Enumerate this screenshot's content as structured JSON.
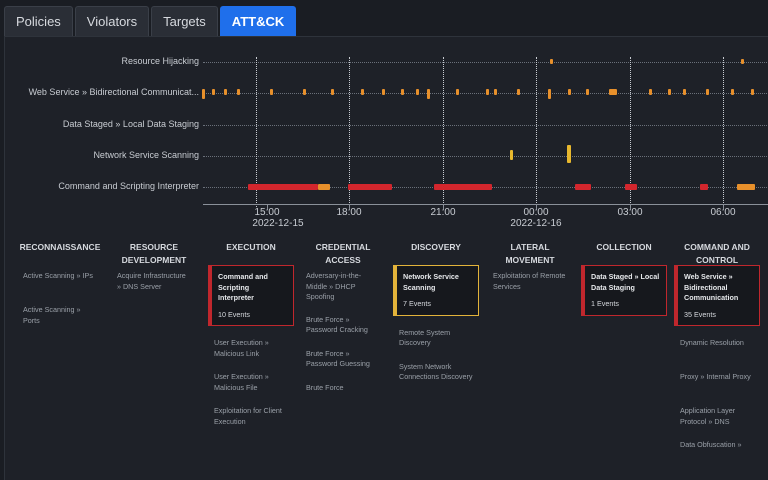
{
  "tabs": [
    {
      "label": "Policies"
    },
    {
      "label": "Violators"
    },
    {
      "label": "Targets"
    },
    {
      "label": "ATT&CK"
    }
  ],
  "timeline": {
    "rows": [
      "Resource Hijacking",
      "Web Service » Bidirectional Communicat...",
      "Data Staged » Local Data Staging",
      "Network Service Scanning",
      "Command and Scripting Interpreter"
    ],
    "ticks": [
      "15:00",
      "18:00",
      "21:00",
      "00:00",
      "03:00",
      "06:00"
    ],
    "dates": [
      "2022-12-15",
      "2022-12-16"
    ],
    "colors": {
      "orange": "#e8902b",
      "red": "#d3262d",
      "yellow": "#e8b82e"
    }
  },
  "mitre": {
    "columns": [
      {
        "head": "RECONNAISSANCE",
        "cells": [
          {
            "text": "Active Scanning » IPs"
          },
          {
            "text": "Active Scanning » Ports"
          }
        ]
      },
      {
        "head": "RESOURCE DEVELOPMENT",
        "cells": [
          {
            "text": "Acquire Infrastructure » DNS Server"
          }
        ]
      },
      {
        "head": "EXECUTION",
        "cells": [
          {
            "text": "Command and Scripting Interpreter",
            "count": "10 Events",
            "card": "red"
          },
          {
            "text": "User Execution » Malicious Link"
          },
          {
            "text": "User Execution » Malicious File"
          },
          {
            "text": "Exploitation for Client Execution"
          }
        ]
      },
      {
        "head": "CREDENTIAL ACCESS",
        "cells": [
          {
            "text": "Adversary-in-the-Middle » DHCP Spoofing"
          },
          {
            "text": "Brute Force » Password Cracking"
          },
          {
            "text": "Brute Force » Password Guessing"
          },
          {
            "text": "Brute Force"
          }
        ]
      },
      {
        "head": "DISCOVERY",
        "cells": [
          {
            "text": "Network Service Scanning",
            "count": "7 Events",
            "card": "yellow"
          },
          {
            "text": "Remote System Discovery"
          },
          {
            "text": "System Network Connections Discovery"
          }
        ]
      },
      {
        "head": "LATERAL MOVEMENT",
        "cells": [
          {
            "text": "Exploitation of Remote Services"
          }
        ]
      },
      {
        "head": "COLLECTION",
        "cells": [
          {
            "text": "Data Staged » Local Data Staging",
            "count": "1 Events",
            "card": "red"
          }
        ]
      },
      {
        "head": "COMMAND AND CONTROL",
        "cells": [
          {
            "text": "Web Service » Bidirectional Communication",
            "count": "35 Events",
            "card": "red"
          },
          {
            "text": "Dynamic Resolution"
          },
          {
            "text": "Proxy » Internal Proxy"
          },
          {
            "text": "Application Layer Protocol » DNS"
          },
          {
            "text": "Data Obfuscation »"
          }
        ]
      }
    ]
  }
}
